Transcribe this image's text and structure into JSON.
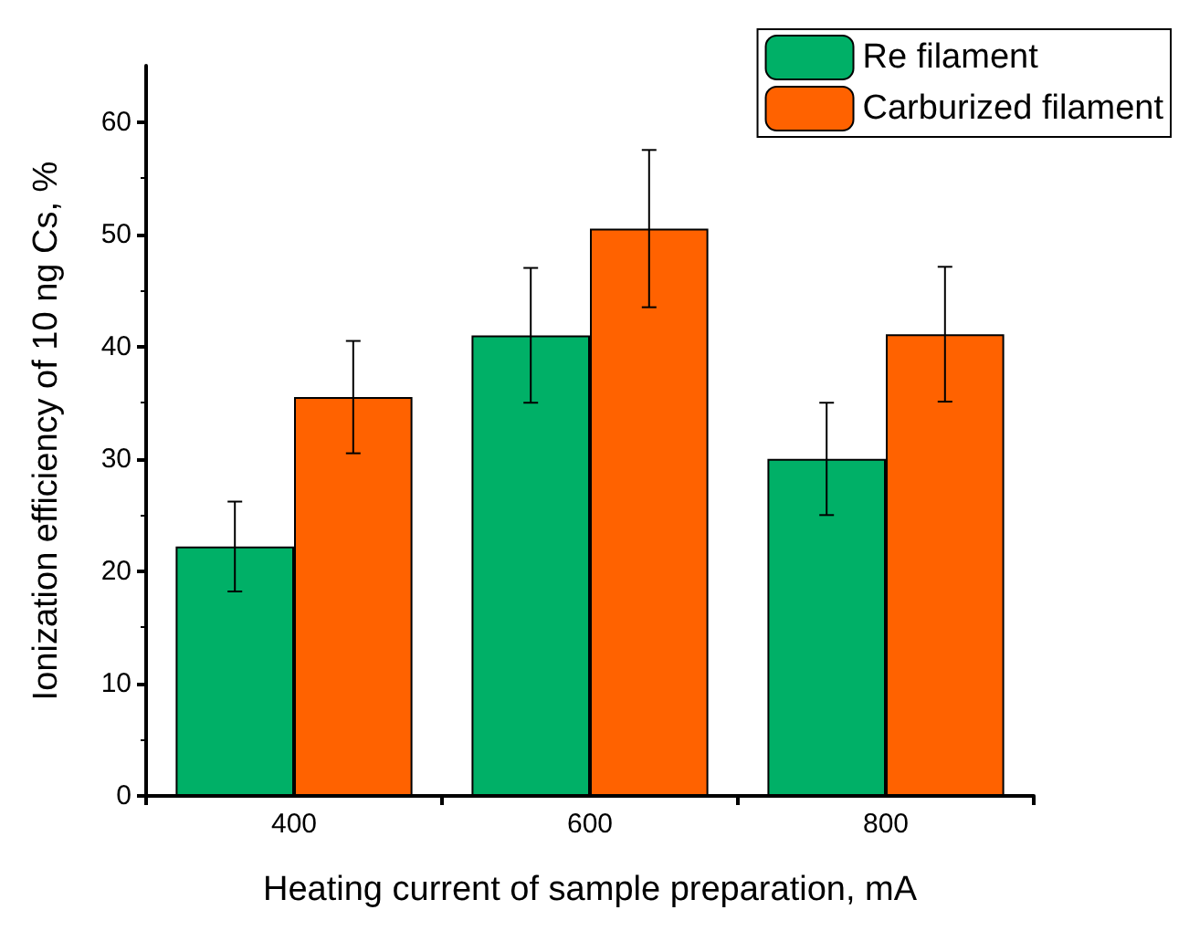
{
  "chart_data": {
    "type": "bar",
    "xlabel": "Heating current of sample preparation, mA",
    "ylabel": "Ionization efficiency of 10 ng Cs, %",
    "categories": [
      "400",
      "600",
      "800"
    ],
    "series": [
      {
        "name": "Re filament",
        "color": "#00b067",
        "values": [
          22.2,
          41.0,
          30.0
        ],
        "errors": [
          4,
          6,
          5
        ]
      },
      {
        "name": "Carburized filament",
        "color": "#ff6200",
        "values": [
          35.5,
          50.5,
          41.1
        ],
        "errors": [
          5,
          7,
          6
        ]
      }
    ],
    "ylim": [
      0,
      65
    ],
    "yticks": [
      0,
      10,
      20,
      30,
      40,
      50,
      60
    ],
    "grid": false,
    "legend": "top right"
  }
}
